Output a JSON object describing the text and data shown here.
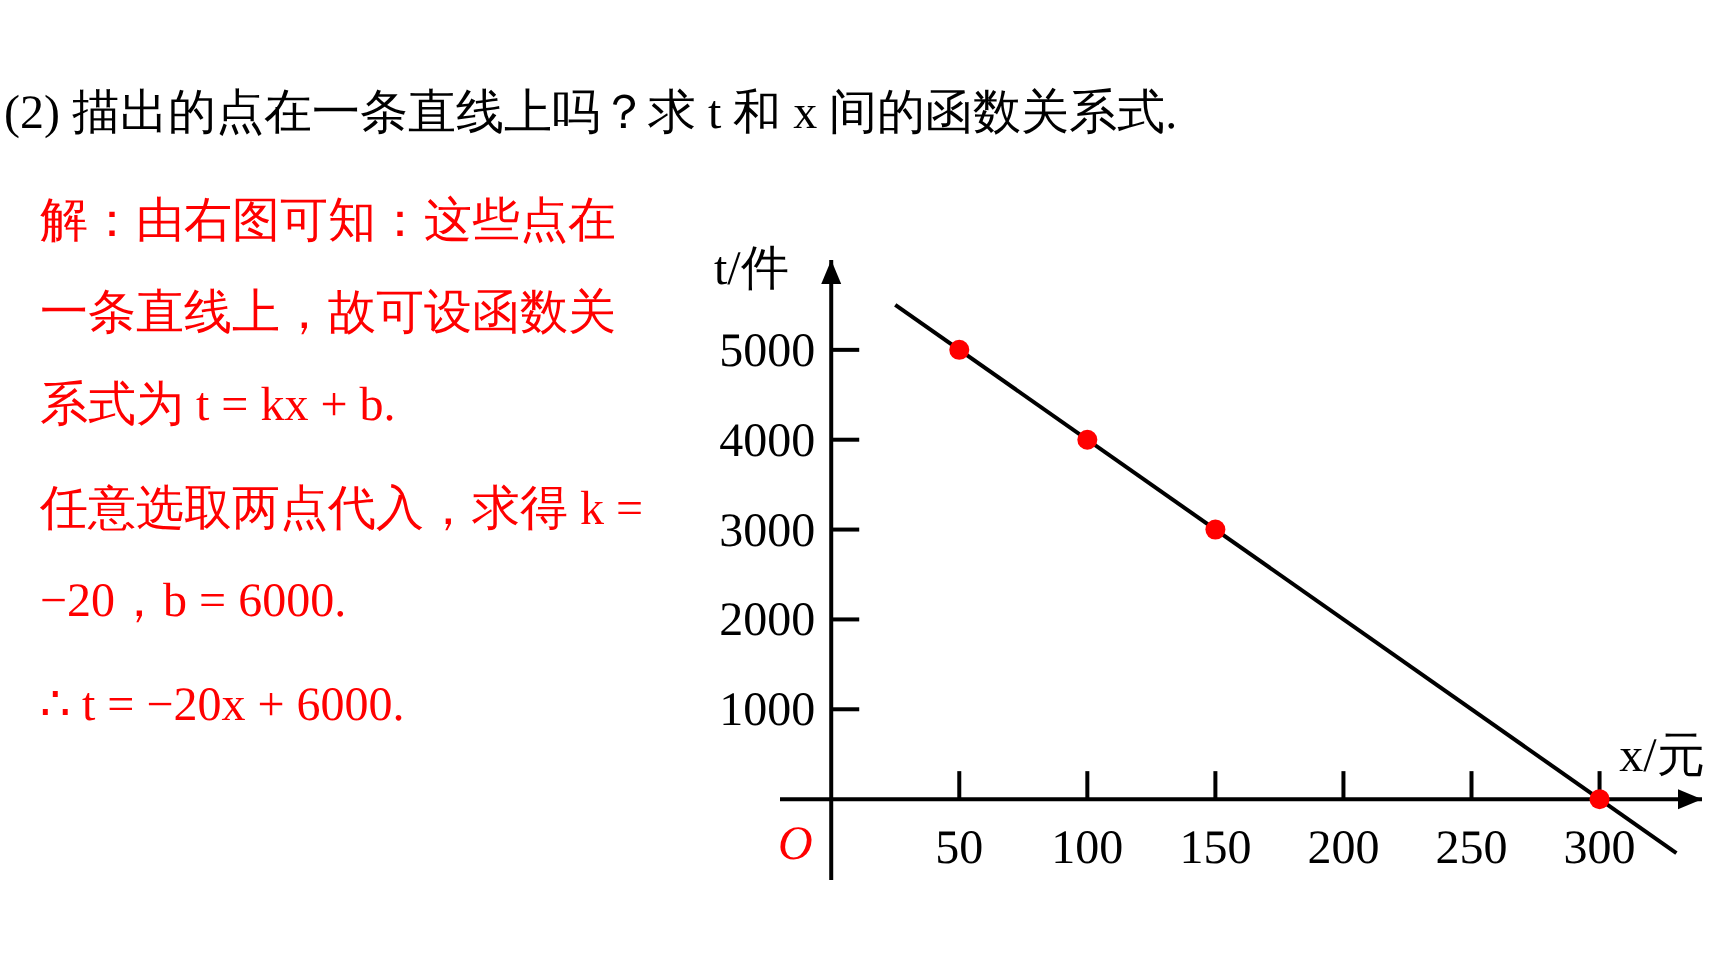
{
  "chart_data": {
    "type": "scatter",
    "title": "(2) 描出的点在一条直线上吗？求 t 和 x 间的函数关系式.",
    "xlabel": "x/元",
    "ylabel": "t/件",
    "annotations": [
      "O",
      "解：由右图可知：这些点在一条直线上，故可设函数关系式为 t = kx + b.",
      "任意选取两点代入，求得 k = −20，b = 6000.",
      "∴ t = −20x + 6000."
    ],
    "xlim": [
      -20,
      340
    ],
    "ylim": [
      -900,
      6000
    ],
    "xticks": [
      50,
      100,
      150,
      200,
      250,
      300
    ],
    "yticks": [
      1000,
      2000,
      3000,
      4000,
      5000
    ],
    "series": [
      {
        "type": "line",
        "color": "#000000",
        "x": [
          25,
          330
        ],
        "values": [
          5500,
          -600
        ],
        "marker": "none"
      },
      {
        "color": "#ff0000",
        "x": [
          50,
          100,
          150,
          300
        ],
        "values": [
          5000,
          4000,
          3000,
          0
        ],
        "marker": "circle"
      }
    ]
  }
}
